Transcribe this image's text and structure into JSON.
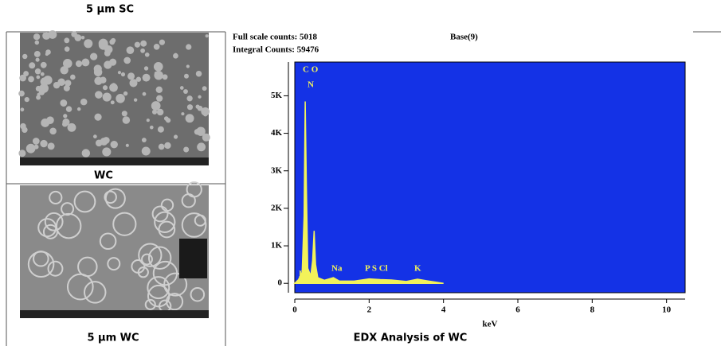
{
  "figure": {
    "top_label": "5 µm SC",
    "middle_label": "WC",
    "bottom_label": "5 µm WC"
  },
  "chart_data": {
    "type": "area",
    "title": "EDX Analysis of WC",
    "header": [
      "Full scale counts: 5018",
      "Integral Counts: 59476",
      "Base(9)"
    ],
    "x_label": "keV",
    "x": [
      0,
      0.1,
      0.2,
      0.25,
      0.28,
      0.31,
      0.35,
      0.39,
      0.43,
      0.48,
      0.52,
      0.56,
      0.62,
      0.8,
      1.04,
      1.2,
      1.6,
      2.0,
      2.3,
      2.6,
      3.0,
      3.3,
      3.6,
      3.8,
      4.0
    ],
    "series": [
      {
        "name": "WC",
        "color": "#f2f25a",
        "values": [
          0,
          100,
          300,
          1800,
          4850,
          2700,
          400,
          300,
          200,
          600,
          1400,
          500,
          150,
          80,
          150,
          60,
          60,
          120,
          100,
          90,
          50,
          110,
          60,
          30,
          0
        ]
      }
    ],
    "annotations": [
      "C O",
      "N",
      "P",
      "Na",
      "P  S Cl",
      "K"
    ],
    "xlim": [
      0,
      10.5
    ],
    "xticks": [
      0,
      2,
      4,
      6,
      8,
      10
    ],
    "ylim": [
      -250,
      5900
    ],
    "yticks": [
      {
        "value": 0,
        "label": "0"
      },
      {
        "value": 1000,
        "label": "1K"
      },
      {
        "value": 2000,
        "label": "2K"
      },
      {
        "value": 3000,
        "label": "3K"
      },
      {
        "value": 4000,
        "label": "4K"
      },
      {
        "value": 5000,
        "label": "5K"
      }
    ],
    "background": "#1432e6"
  }
}
